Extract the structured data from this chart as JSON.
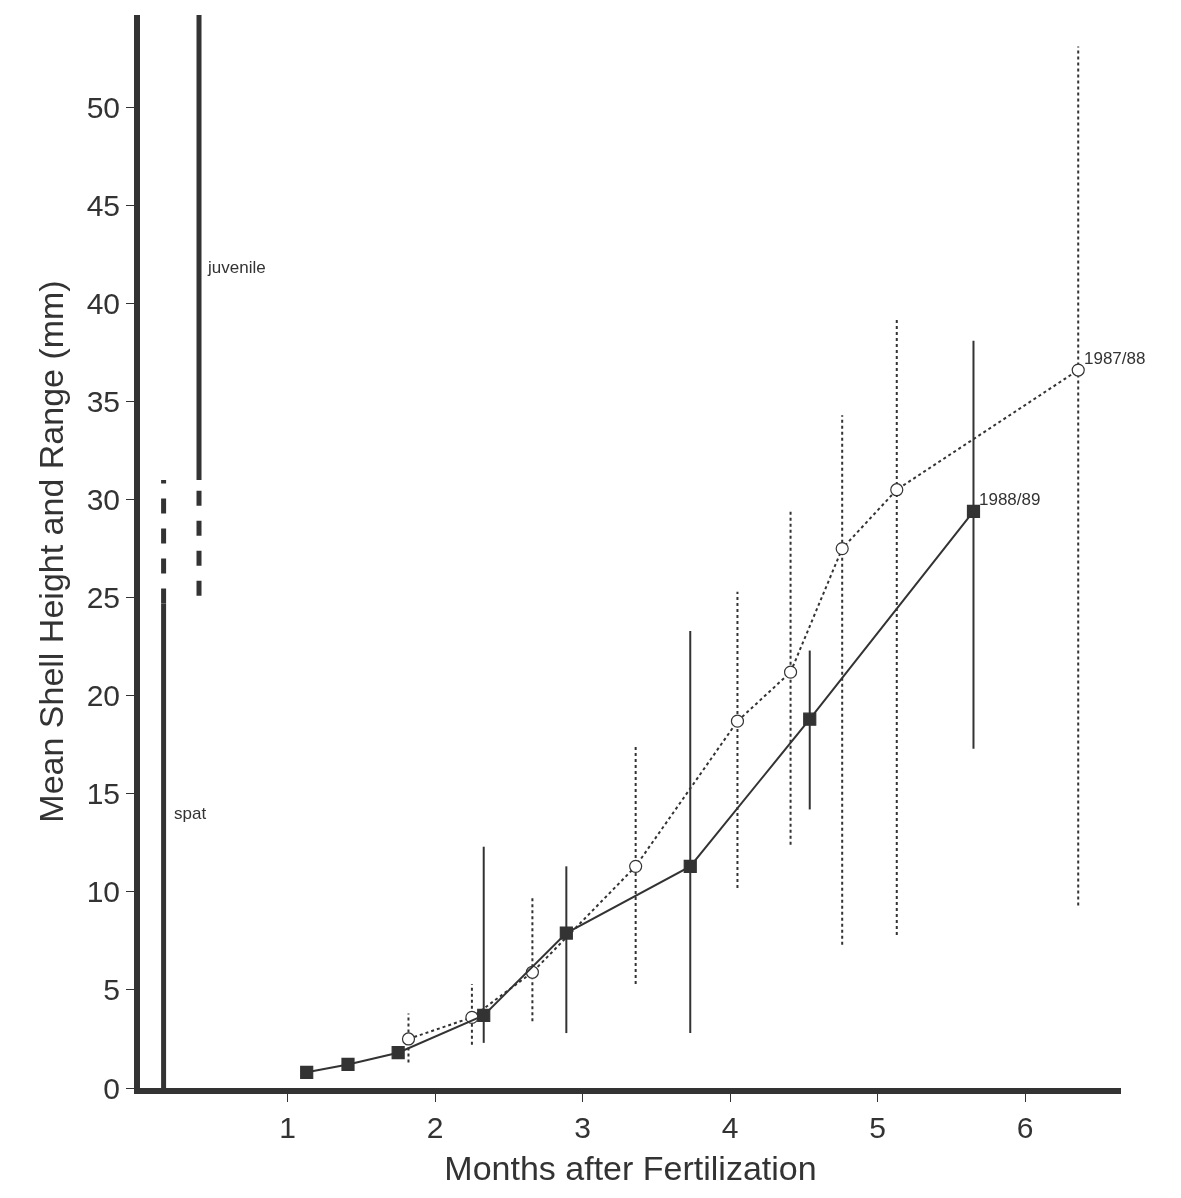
{
  "chart_data": {
    "type": "line",
    "xlabel": "Months after Fertilization",
    "ylabel": "Mean Shell Height and Range (mm)",
    "xlim": [
      0,
      6.65
    ],
    "ylim": [
      0,
      54.7
    ],
    "xticks": [
      1,
      2,
      3,
      4,
      5,
      6
    ],
    "yticks": [
      0,
      5,
      10,
      15,
      20,
      25,
      30,
      35,
      40,
      45,
      50
    ],
    "legend": false,
    "series": [
      {
        "name": "1987/88",
        "color": "#333333",
        "marker": "circle",
        "line_style": "dotted",
        "x": [
          1.82,
          2.25,
          2.66,
          3.36,
          4.05,
          4.41,
          4.76,
          5.13,
          6.36
        ],
        "values": [
          2.5,
          3.6,
          5.9,
          11.3,
          18.7,
          21.2,
          27.5,
          30.5,
          36.6
        ],
        "errors": [
          [
            1.3,
            3.8
          ],
          [
            2.2,
            5.3
          ],
          [
            3.4,
            9.8
          ],
          [
            5.3,
            17.4
          ],
          [
            10.2,
            25.3
          ],
          [
            12.4,
            29.4
          ],
          [
            7.3,
            34.3
          ],
          [
            7.8,
            39.3
          ],
          [
            9.3,
            53.1
          ]
        ]
      },
      {
        "name": "1988/89",
        "color": "#333333",
        "marker": "square",
        "line_style": "solid",
        "x": [
          1.13,
          1.41,
          1.75,
          2.33,
          2.89,
          3.73,
          4.54,
          5.65
        ],
        "values": [
          0.8,
          1.2,
          1.8,
          3.7,
          7.9,
          11.3,
          18.8,
          29.4
        ],
        "errors": [
          null,
          null,
          null,
          [
            2.3,
            12.3
          ],
          [
            2.8,
            11.3
          ],
          [
            2.8,
            23.3
          ],
          [
            14.2,
            22.3
          ],
          [
            17.3,
            38.1
          ]
        ]
      },
      {
        "color": "#333333",
        "marker": "none",
        "line_style": "solid",
        "x": [
          0.16,
          0.16
        ],
        "values": [
          0,
          24.7
        ]
      },
      {
        "color": "#333333",
        "marker": "none",
        "line_style": "dashed",
        "x": [
          0.16,
          0.16
        ],
        "values": [
          24.7,
          31
        ]
      },
      {
        "color": "#333333",
        "marker": "none",
        "line_style": "dashed",
        "x": [
          0.4,
          0.4
        ],
        "values": [
          25.1,
          31
        ]
      },
      {
        "color": "#333333",
        "marker": "none",
        "line_style": "solid",
        "x": [
          0.4,
          0.4
        ],
        "values": [
          31,
          54.7
        ]
      }
    ],
    "annotations": [
      "juvenile",
      "spat"
    ]
  }
}
